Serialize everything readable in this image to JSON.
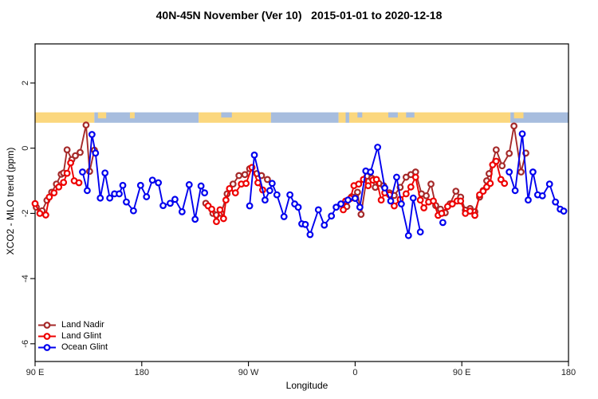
{
  "title": "40N-45N November (Ver 10)   2015-01-01 to 2020-12-18",
  "chart_data": {
    "type": "line",
    "title": "40N-45N November (Ver 10)   2015-01-01 to 2020-12-18",
    "xlabel": "Longitude",
    "ylabel": "XCO2 - MLO trend (ppm)",
    "x_convention": "degrees east, axis starts at 90E and wraps eastward around the globe to 180 (axis coordinate 90 to 540)",
    "xlim": [
      90,
      540
    ],
    "ylim": [
      -6.6,
      3.2
    ],
    "x_ticks": [
      {
        "lon": 90,
        "label": "90 E"
      },
      {
        "lon": 180,
        "label": "180"
      },
      {
        "lon": 270,
        "label": "90 W"
      },
      {
        "lon": 360,
        "label": "0"
      },
      {
        "lon": 450,
        "label": "90 E"
      },
      {
        "lon": 540,
        "label": "180"
      }
    ],
    "y_ticks": [
      2,
      0,
      -2,
      -4,
      -6
    ],
    "grid": false,
    "legend_position": "bottom-left",
    "map_band": {
      "description": "land/ocean world-map strip for the 40N-45N latitude belt",
      "y_range_ppm": [
        0.78,
        1.1
      ],
      "land_color": "#FBD77E",
      "ocean_color": "#A7BDDE",
      "segments": [
        {
          "from": 90,
          "to": 140,
          "type": "land"
        },
        {
          "from": 140,
          "to": 228,
          "type": "ocean"
        },
        {
          "from": 228,
          "to": 289,
          "type": "land"
        },
        {
          "from": 289,
          "to": 346,
          "type": "ocean"
        },
        {
          "from": 346,
          "to": 352,
          "type": "land"
        },
        {
          "from": 352,
          "to": 355,
          "type": "ocean"
        },
        {
          "from": 355,
          "to": 491,
          "type": "land"
        },
        {
          "from": 491,
          "to": 540,
          "type": "ocean"
        }
      ],
      "ocean_notches": [
        [
          247,
          256
        ],
        [
          362,
          366
        ],
        [
          388,
          396
        ],
        [
          403,
          410
        ]
      ],
      "land_notches": [
        [
          143,
          150
        ],
        [
          170,
          174
        ],
        [
          494,
          502
        ]
      ]
    },
    "series": [
      {
        "name": "Land Nadir",
        "color": "#A52A2A",
        "segments": [
          [
            [
              91,
              -1.81
            ],
            [
              96,
              -1.92
            ],
            [
              100,
              -1.6
            ],
            [
              104,
              -1.35
            ],
            [
              108,
              -1.1
            ],
            [
              112,
              -0.8
            ],
            [
              114,
              -0.76
            ],
            [
              117,
              -0.05
            ],
            [
              121,
              -0.35
            ],
            [
              124,
              -0.23
            ],
            [
              128,
              -0.13
            ],
            [
              133,
              0.71
            ],
            [
              136,
              -0.71
            ],
            [
              140,
              -0.06
            ]
          ],
          [
            [
              234,
              -1.69
            ],
            [
              240,
              -2.0
            ],
            [
              243,
              -2.05
            ],
            [
              247,
              -2.0
            ],
            [
              252,
              -1.4
            ],
            [
              257,
              -1.1
            ],
            [
              262,
              -0.84
            ],
            [
              267,
              -0.81
            ],
            [
              271,
              -0.63
            ],
            [
              277,
              -0.78
            ],
            [
              281,
              -0.84
            ],
            [
              286,
              -0.96
            ]
          ],
          [
            [
              353,
              -1.79
            ],
            [
              357,
              -1.49
            ],
            [
              362,
              -1.35
            ],
            [
              365,
              -2.03
            ],
            [
              370,
              -0.86
            ],
            [
              374,
              -0.92
            ],
            [
              377,
              -1.2
            ],
            [
              380,
              -1.08
            ],
            [
              384,
              -1.15
            ],
            [
              389,
              -1.37
            ],
            [
              393,
              -1.45
            ],
            [
              398,
              -1.2
            ],
            [
              403,
              -0.89
            ],
            [
              407,
              -0.81
            ],
            [
              411,
              -0.73
            ],
            [
              416,
              -1.4
            ],
            [
              420,
              -1.46
            ],
            [
              424,
              -1.1
            ],
            [
              428,
              -1.76
            ],
            [
              432,
              -1.87
            ],
            [
              436,
              -1.98
            ],
            [
              440,
              -1.71
            ],
            [
              445,
              -1.32
            ],
            [
              449,
              -1.5
            ],
            [
              453,
              -1.9
            ],
            [
              457,
              -1.85
            ],
            [
              461,
              -1.95
            ],
            [
              465,
              -1.5
            ],
            [
              468,
              -1.3
            ],
            [
              471,
              -1.0
            ],
            [
              473,
              -0.78
            ],
            [
              479,
              -0.05
            ],
            [
              484,
              -0.54
            ],
            [
              490,
              -0.16
            ],
            [
              494,
              0.68
            ],
            [
              500,
              -0.73
            ],
            [
              504,
              -0.15
            ]
          ]
        ]
      },
      {
        "name": "Land Glint",
        "color": "#EE0000",
        "segments": [
          [
            [
              90,
              -1.7
            ],
            [
              94,
              -2.0
            ],
            [
              99,
              -2.05
            ],
            [
              102,
              -1.5
            ],
            [
              106,
              -1.37
            ],
            [
              110,
              -1.19
            ],
            [
              114,
              -1.05
            ],
            [
              117,
              -0.77
            ],
            [
              120,
              -0.45
            ],
            [
              123,
              -1.0
            ],
            [
              127,
              -1.06
            ]
          ],
          [
            [
              236,
              -1.77
            ],
            [
              239,
              -1.87
            ],
            [
              243,
              -2.25
            ],
            [
              246,
              -1.89
            ],
            [
              249,
              -2.16
            ],
            [
              251,
              -1.59
            ],
            [
              254,
              -1.24
            ],
            [
              259,
              -1.37
            ],
            [
              264,
              -1.1
            ],
            [
              268,
              -1.08
            ],
            [
              273,
              -0.59
            ],
            [
              278,
              -1.06
            ],
            [
              282,
              -1.28
            ]
          ],
          [
            [
              350,
              -1.89
            ],
            [
              352,
              -1.62
            ],
            [
              356,
              -1.54
            ],
            [
              359,
              -1.15
            ],
            [
              363,
              -1.1
            ],
            [
              367,
              -0.96
            ],
            [
              371,
              -1.15
            ],
            [
              375,
              -0.98
            ],
            [
              378,
              -0.96
            ],
            [
              382,
              -1.59
            ],
            [
              385,
              -1.37
            ],
            [
              389,
              -1.43
            ],
            [
              393,
              -1.77
            ],
            [
              398,
              -1.57
            ],
            [
              403,
              -1.4
            ],
            [
              407,
              -1.19
            ],
            [
              411,
              -0.89
            ],
            [
              415,
              -1.59
            ],
            [
              418,
              -1.83
            ],
            [
              422,
              -1.65
            ],
            [
              426,
              -1.62
            ],
            [
              430,
              -2.06
            ],
            [
              433,
              -2.0
            ],
            [
              438,
              -1.79
            ],
            [
              442,
              -1.71
            ],
            [
              446,
              -1.62
            ],
            [
              449,
              -1.62
            ],
            [
              453,
              -2.0
            ],
            [
              457,
              -1.93
            ],
            [
              461,
              -2.06
            ],
            [
              465,
              -1.43
            ],
            [
              468,
              -1.32
            ],
            [
              471,
              -1.19
            ],
            [
              474,
              -1.08
            ],
            [
              476,
              -0.51
            ],
            [
              479,
              -0.4
            ],
            [
              483,
              -0.96
            ],
            [
              486,
              -1.08
            ]
          ]
        ]
      },
      {
        "name": "Ocean Glint",
        "color": "#0000EE",
        "segments": [
          [
            [
              130,
              -0.73
            ],
            [
              134,
              -1.3
            ],
            [
              138,
              0.42
            ],
            [
              141,
              -0.15
            ],
            [
              145,
              -1.53
            ],
            [
              149,
              -0.76
            ],
            [
              153,
              -1.53
            ],
            [
              157,
              -1.4
            ],
            [
              161,
              -1.4
            ],
            [
              164,
              -1.14
            ],
            [
              167,
              -1.65
            ],
            [
              173,
              -1.92
            ],
            [
              179,
              -1.14
            ],
            [
              184,
              -1.49
            ],
            [
              189,
              -0.98
            ],
            [
              194,
              -1.06
            ],
            [
              198,
              -1.76
            ],
            [
              204,
              -1.69
            ],
            [
              208,
              -1.57
            ],
            [
              214,
              -1.95
            ],
            [
              220,
              -1.12
            ],
            [
              225,
              -2.18
            ],
            [
              230,
              -1.16
            ],
            [
              233,
              -1.37
            ]
          ],
          [
            [
              271,
              -1.77
            ],
            [
              275,
              -0.21
            ],
            [
              284,
              -1.59
            ],
            [
              288,
              -1.3
            ],
            [
              290,
              -1.08
            ],
            [
              294,
              -1.43
            ],
            [
              300,
              -2.1
            ],
            [
              305,
              -1.43
            ],
            [
              309,
              -1.71
            ],
            [
              312,
              -1.81
            ],
            [
              315,
              -2.32
            ],
            [
              318,
              -2.34
            ],
            [
              322,
              -2.65
            ],
            [
              329,
              -1.89
            ],
            [
              334,
              -2.36
            ],
            [
              340,
              -2.08
            ],
            [
              344,
              -1.81
            ],
            [
              348,
              -1.71
            ],
            [
              354,
              -1.59
            ],
            [
              360,
              -1.54
            ],
            [
              364,
              -1.81
            ],
            [
              369,
              -0.7
            ],
            [
              373,
              -0.73
            ],
            [
              379,
              0.03
            ],
            [
              385,
              -1.22
            ],
            [
              390,
              -1.62
            ],
            [
              395,
              -0.89
            ],
            [
              399,
              -1.71
            ],
            [
              405,
              -2.68
            ],
            [
              409,
              -1.53
            ],
            [
              415,
              -2.57
            ]
          ],
          [
            [
              434,
              -2.28
            ]
          ],
          [
            [
              490,
              -0.73
            ],
            [
              495,
              -1.3
            ],
            [
              501,
              0.44
            ],
            [
              506,
              -1.59
            ],
            [
              510,
              -0.73
            ],
            [
              514,
              -1.43
            ],
            [
              518,
              -1.46
            ],
            [
              524,
              -1.1
            ],
            [
              529,
              -1.65
            ],
            [
              533,
              -1.87
            ],
            [
              536,
              -1.93
            ]
          ]
        ]
      }
    ]
  }
}
